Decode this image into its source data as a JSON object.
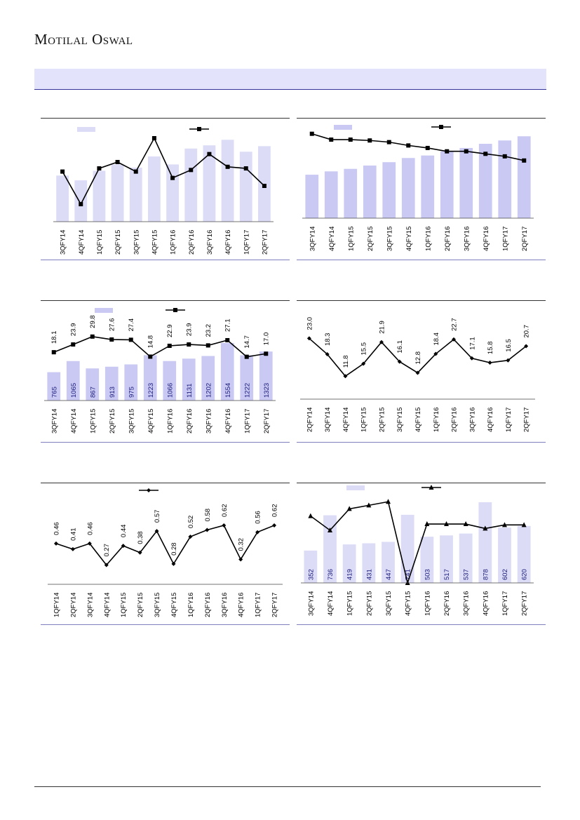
{
  "header": {
    "brand": "Motilal Oswal"
  },
  "charts": [
    {
      "type": "bar+line",
      "categories": [
        "3QFY14",
        "4QFY14",
        "1QFY15",
        "2QFY15",
        "3QFY15",
        "4QFY15",
        "1QFY16",
        "2QFY16",
        "3QFY16",
        "4QFY16",
        "1QFY17",
        "2QFY17"
      ],
      "bars": [
        58,
        52,
        64,
        72,
        68,
        82,
        72,
        92,
        96,
        103,
        88,
        95
      ],
      "line": [
        63,
        22,
        67,
        75,
        63,
        105,
        55,
        65,
        85,
        69,
        67,
        45
      ],
      "bar_color": "#dcdcf7",
      "line_color": "#000000",
      "line_marker": "square",
      "legend": true,
      "bar_labels": [],
      "line_labels": []
    },
    {
      "type": "bar+line",
      "categories": [
        "3QFY14",
        "4QFY14",
        "1QFY15",
        "2QFY15",
        "3QFY15",
        "4QFY15",
        "1QFY16",
        "2QFY16",
        "3QFY16",
        "4QFY16",
        "1QFY17",
        "2QFY17"
      ],
      "bars": [
        52,
        56,
        59,
        63,
        67,
        72,
        75,
        80,
        84,
        89,
        93,
        98
      ],
      "line": [
        101,
        94,
        94,
        93,
        91,
        87,
        84,
        80,
        80,
        77,
        74,
        69
      ],
      "bar_color": "#c9c9f3",
      "line_color": "#000000",
      "line_marker": "square",
      "legend": true,
      "bar_labels": [],
      "line_labels": []
    },
    {
      "type": "bar+line",
      "categories": [
        "3QFY14",
        "4QFY14",
        "1QFY15",
        "2QFY15",
        "3QFY15",
        "4QFY15",
        "1QFY16",
        "2QFY16",
        "3QFY16",
        "4QFY16",
        "1QFY17",
        "2QFY17"
      ],
      "bars": [
        765,
        1065,
        867,
        913,
        975,
        1223,
        1066,
        1131,
        1202,
        1554,
        1222,
        1323
      ],
      "line": [
        18.1,
        23.9,
        29.8,
        27.6,
        27.4,
        14.8,
        22.9,
        23.9,
        23.2,
        27.1,
        14.7,
        17.0
      ],
      "bar_color": "#c9c9f3",
      "line_color": "#000000",
      "line_marker": "square",
      "legend": true,
      "bar_labels": [
        "765",
        "1065",
        "867",
        "913",
        "975",
        "1223",
        "1066",
        "1131",
        "1202",
        "1554",
        "1222",
        "1323"
      ],
      "line_labels": [
        "18.1",
        "23.9",
        "29.8",
        "27.6",
        "27.4",
        "14.8",
        "22.9",
        "23.9",
        "23.2",
        "27.1",
        "14.7",
        "17.0"
      ]
    },
    {
      "type": "line",
      "categories": [
        "2QFY14",
        "3QFY14",
        "4QFY14",
        "1QFY15",
        "2QFY15",
        "3QFY15",
        "4QFY15",
        "1QFY16",
        "2QFY16",
        "3QFY16",
        "4QFY16",
        "1QFY17",
        "2QFY17"
      ],
      "line": [
        23.0,
        18.3,
        11.8,
        15.5,
        21.9,
        16.1,
        12.8,
        18.4,
        22.7,
        17.1,
        15.8,
        16.5,
        20.7
      ],
      "line_color": "#000000",
      "line_marker": "diamond",
      "legend": false,
      "line_labels": [
        "23.0",
        "18.3",
        "11.8",
        "15.5",
        "21.9",
        "16.1",
        "12.8",
        "18.4",
        "22.7",
        "17.1",
        "15.8",
        "16.5",
        "20.7"
      ]
    },
    {
      "type": "line",
      "categories": [
        "1QFY14",
        "2QFY14",
        "3QFY14",
        "4QFY14",
        "1QFY15",
        "2QFY15",
        "3QFY15",
        "4QFY15",
        "1QFY16",
        "2QFY16",
        "3QFY16",
        "4QFY16",
        "1QFY17",
        "2QFY17"
      ],
      "line": [
        0.46,
        0.41,
        0.46,
        0.27,
        0.44,
        0.38,
        0.57,
        0.28,
        0.52,
        0.58,
        0.62,
        0.32,
        0.56,
        0.62
      ],
      "line_color": "#000000",
      "line_marker": "diamond",
      "legend": true,
      "line_labels": [
        "0.46",
        "0.41",
        "0.46",
        "0.27",
        "0.44",
        "0.38",
        "0.57",
        "0.28",
        "0.52",
        "0.58",
        "0.62",
        "0.32",
        "0.56",
        "0.62"
      ]
    },
    {
      "type": "bar+line",
      "categories": [
        "3QFY14",
        "4QFY14",
        "1QFY15",
        "2QFY15",
        "3QFY15",
        "4QFY15",
        "1QFY16",
        "2QFY16",
        "3QFY16",
        "4QFY16",
        "1QFY17",
        "2QFY17"
      ],
      "bars": [
        352,
        736,
        419,
        431,
        447,
        741,
        503,
        517,
        537,
        878,
        602,
        620
      ],
      "line": [
        72,
        56,
        80,
        84,
        88,
        -3,
        63,
        63,
        63,
        58,
        62,
        62
      ],
      "bar_color": "#dcdcf7",
      "line_color": "#000000",
      "line_marker": "triangle",
      "legend": true,
      "bar_labels": [
        "352",
        "736",
        "419",
        "431",
        "447",
        "741",
        "503",
        "517",
        "537",
        "878",
        "602",
        "620"
      ],
      "line_labels": []
    }
  ]
}
